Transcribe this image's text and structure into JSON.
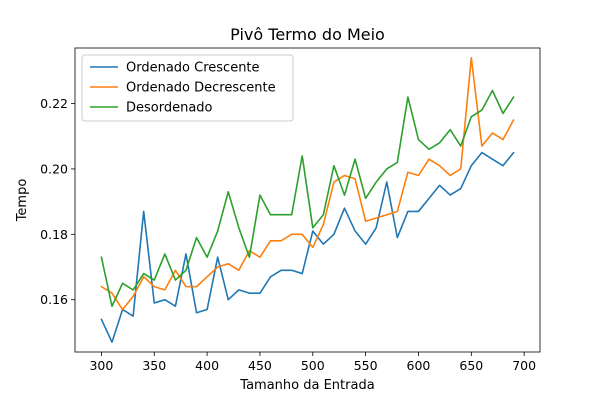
{
  "chart_data": {
    "type": "line",
    "title": "Pivô Termo do Meio",
    "xlabel": "Tamanho da Entrada",
    "ylabel": "Tempo",
    "xlim": [
      275,
      715
    ],
    "ylim": [
      0.144,
      0.237
    ],
    "xticks": [
      300,
      350,
      400,
      450,
      500,
      550,
      600,
      650,
      700
    ],
    "yticks": [
      0.16,
      0.18,
      0.2,
      0.22
    ],
    "ytick_labels": [
      "0.16",
      "0.18",
      "0.20",
      "0.22"
    ],
    "grid": false,
    "legend_position": "upper-left",
    "x": [
      300,
      310,
      320,
      330,
      340,
      350,
      360,
      370,
      380,
      390,
      400,
      410,
      420,
      430,
      440,
      450,
      460,
      470,
      480,
      490,
      500,
      510,
      520,
      530,
      540,
      550,
      560,
      570,
      580,
      590,
      600,
      610,
      620,
      630,
      640,
      650,
      660,
      670,
      680,
      690
    ],
    "series": [
      {
        "name": "Ordenado Crescente",
        "color": "#1f77b4",
        "values": [
          0.154,
          0.147,
          0.157,
          0.155,
          0.187,
          0.159,
          0.16,
          0.158,
          0.174,
          0.156,
          0.157,
          0.173,
          0.16,
          0.163,
          0.162,
          0.162,
          0.167,
          0.169,
          0.169,
          0.168,
          0.181,
          0.177,
          0.18,
          0.188,
          0.181,
          0.177,
          0.182,
          0.196,
          0.179,
          0.187,
          0.187,
          0.191,
          0.195,
          0.192,
          0.194,
          0.201,
          0.205,
          0.203,
          0.201,
          0.205
        ]
      },
      {
        "name": "Ordenado Decrescente",
        "color": "#ff7f0e",
        "values": [
          0.164,
          0.162,
          0.157,
          0.161,
          0.167,
          0.164,
          0.163,
          0.169,
          0.164,
          0.164,
          0.167,
          0.17,
          0.171,
          0.169,
          0.175,
          0.173,
          0.178,
          0.178,
          0.18,
          0.18,
          0.176,
          0.183,
          0.196,
          0.198,
          0.197,
          0.184,
          0.185,
          0.186,
          0.187,
          0.199,
          0.198,
          0.203,
          0.201,
          0.198,
          0.2,
          0.234,
          0.207,
          0.211,
          0.209,
          0.215
        ]
      },
      {
        "name": "Desordenado",
        "color": "#2ca02c",
        "values": [
          0.173,
          0.158,
          0.165,
          0.163,
          0.168,
          0.166,
          0.174,
          0.166,
          0.169,
          0.179,
          0.173,
          0.181,
          0.193,
          0.182,
          0.173,
          0.192,
          0.186,
          0.186,
          0.186,
          0.204,
          0.182,
          0.186,
          0.201,
          0.192,
          0.203,
          0.191,
          0.196,
          0.2,
          0.202,
          0.222,
          0.209,
          0.206,
          0.208,
          0.212,
          0.207,
          0.216,
          0.218,
          0.224,
          0.217,
          0.222
        ]
      }
    ]
  }
}
